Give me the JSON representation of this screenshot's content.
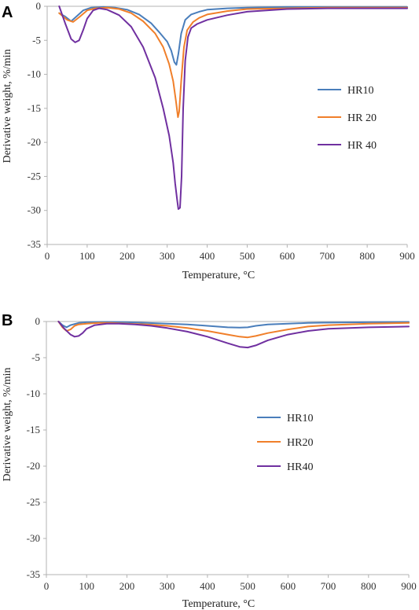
{
  "colors": {
    "hr10": "#4a7ebb",
    "hr20": "#f07f2a",
    "hr40": "#7030a0",
    "axis": "#b3b3b3"
  },
  "chart_data": [
    {
      "panel": "A",
      "type": "line",
      "xlabel": "Temperature, °C",
      "ylabel": "Derivative weight, %/min",
      "xlim": [
        0,
        900
      ],
      "ylim": [
        -35,
        0
      ],
      "xticks": [
        0,
        100,
        200,
        300,
        400,
        500,
        600,
        700,
        800,
        900
      ],
      "yticks": [
        0,
        -5,
        -10,
        -15,
        -20,
        -25,
        -30,
        -35
      ],
      "grid": false,
      "legend_position": "right",
      "series": [
        {
          "name": "HR10",
          "color": "#4a7ebb",
          "x": [
            30,
            45,
            60,
            75,
            90,
            110,
            140,
            170,
            200,
            230,
            260,
            280,
            300,
            310,
            318,
            323,
            328,
            335,
            345,
            360,
            380,
            400,
            450,
            500,
            600,
            700,
            800,
            900
          ],
          "y": [
            -1.0,
            -1.5,
            -2.2,
            -1.4,
            -0.6,
            -0.2,
            -0.1,
            -0.2,
            -0.5,
            -1.2,
            -2.5,
            -3.8,
            -5.2,
            -6.5,
            -8.2,
            -8.6,
            -7.0,
            -4.0,
            -2.0,
            -1.2,
            -0.8,
            -0.5,
            -0.3,
            -0.2,
            -0.1,
            -0.1,
            -0.1,
            -0.1
          ]
        },
        {
          "name": "HR 20",
          "color": "#f07f2a",
          "x": [
            30,
            50,
            65,
            80,
            100,
            120,
            150,
            180,
            210,
            240,
            270,
            290,
            305,
            315,
            322,
            327,
            330,
            335,
            342,
            350,
            365,
            380,
            400,
            450,
            500,
            600,
            700,
            800,
            900
          ],
          "y": [
            -1.0,
            -2.0,
            -2.3,
            -1.6,
            -0.6,
            -0.3,
            -0.2,
            -0.4,
            -1.0,
            -2.2,
            -4.0,
            -6.0,
            -8.5,
            -11.0,
            -14.0,
            -16.3,
            -15.5,
            -11.0,
            -6.0,
            -3.5,
            -2.3,
            -1.7,
            -1.2,
            -0.7,
            -0.4,
            -0.3,
            -0.2,
            -0.2,
            -0.2
          ]
        },
        {
          "name": "HR 40",
          "color": "#7030a0",
          "x": [
            30,
            45,
            60,
            70,
            80,
            90,
            100,
            115,
            130,
            150,
            180,
            210,
            240,
            270,
            290,
            305,
            315,
            320,
            325,
            328,
            332,
            336,
            340,
            345,
            352,
            360,
            375,
            400,
            450,
            500,
            600,
            700,
            800,
            900
          ],
          "y": [
            0,
            -2.5,
            -4.8,
            -5.3,
            -5.0,
            -3.5,
            -1.8,
            -0.6,
            -0.3,
            -0.5,
            -1.3,
            -3.0,
            -6.0,
            -10.5,
            -15.0,
            -19.0,
            -23.0,
            -26.0,
            -28.5,
            -29.8,
            -29.6,
            -25.0,
            -15.0,
            -8.0,
            -4.5,
            -3.2,
            -2.6,
            -2.0,
            -1.3,
            -0.8,
            -0.4,
            -0.3,
            -0.3,
            -0.3
          ]
        }
      ]
    },
    {
      "panel": "B",
      "type": "line",
      "xlabel": "Temperature, °C",
      "ylabel": "Derivative weight, %/min",
      "xlim": [
        0,
        900
      ],
      "ylim": [
        -35,
        0
      ],
      "xticks": [
        0,
        100,
        200,
        300,
        400,
        500,
        600,
        700,
        800,
        900
      ],
      "yticks": [
        0,
        -5,
        -10,
        -15,
        -20,
        -25,
        -30,
        -35
      ],
      "grid": false,
      "legend_position": "center-left",
      "series": [
        {
          "name": "HR10",
          "color": "#4a7ebb",
          "x": [
            30,
            40,
            50,
            60,
            80,
            100,
            150,
            200,
            250,
            300,
            350,
            400,
            450,
            480,
            500,
            520,
            550,
            600,
            650,
            700,
            800,
            900
          ],
          "y": [
            0,
            -0.5,
            -0.8,
            -0.5,
            -0.2,
            -0.1,
            -0.05,
            -0.1,
            -0.2,
            -0.3,
            -0.4,
            -0.6,
            -0.8,
            -0.85,
            -0.8,
            -0.6,
            -0.4,
            -0.3,
            -0.2,
            -0.15,
            -0.1,
            -0.05
          ]
        },
        {
          "name": "HR20",
          "color": "#f07f2a",
          "x": [
            30,
            40,
            50,
            60,
            70,
            80,
            100,
            130,
            160,
            200,
            250,
            300,
            350,
            400,
            450,
            480,
            500,
            520,
            550,
            600,
            650,
            700,
            800,
            900
          ],
          "y": [
            0,
            -0.8,
            -1.3,
            -1.1,
            -0.6,
            -0.4,
            -0.3,
            -0.2,
            -0.2,
            -0.3,
            -0.4,
            -0.6,
            -0.9,
            -1.3,
            -1.8,
            -2.1,
            -2.2,
            -2.0,
            -1.6,
            -1.1,
            -0.7,
            -0.5,
            -0.3,
            -0.2
          ]
        },
        {
          "name": "HR40",
          "color": "#7030a0",
          "x": [
            30,
            45,
            60,
            70,
            80,
            90,
            100,
            120,
            150,
            180,
            220,
            260,
            300,
            350,
            400,
            450,
            480,
            500,
            520,
            550,
            600,
            650,
            700,
            800,
            900
          ],
          "y": [
            0,
            -1.0,
            -1.8,
            -2.1,
            -2.0,
            -1.6,
            -1.0,
            -0.5,
            -0.3,
            -0.3,
            -0.4,
            -0.6,
            -0.9,
            -1.4,
            -2.1,
            -3.0,
            -3.5,
            -3.6,
            -3.3,
            -2.6,
            -1.8,
            -1.3,
            -1.0,
            -0.8,
            -0.7
          ]
        }
      ]
    }
  ]
}
